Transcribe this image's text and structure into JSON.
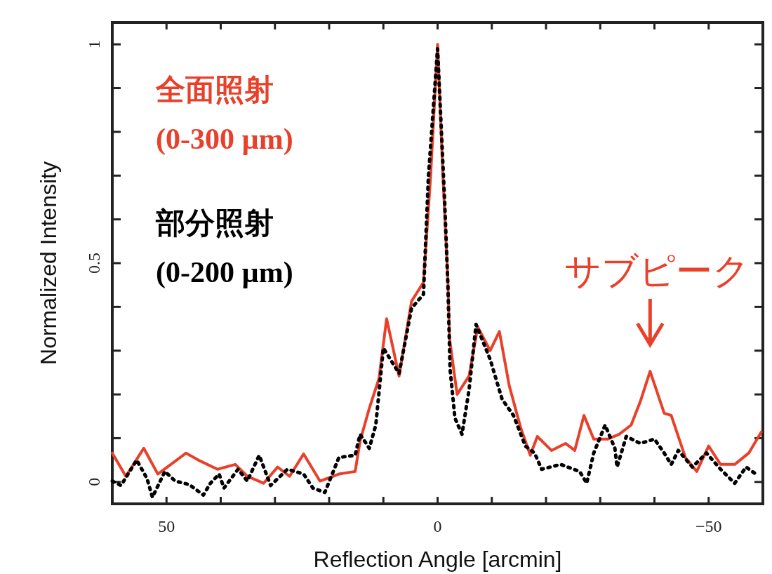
{
  "chart_data": {
    "type": "line",
    "xlabel": "Reflection Angle [arcmin]",
    "ylabel": "Normalized Intensity",
    "xlim": [
      60,
      -60
    ],
    "ylim": [
      -0.05,
      1.05
    ],
    "xticks": [
      {
        "value": 50,
        "label": "50"
      },
      {
        "value": 40,
        "label": null
      },
      {
        "value": 30,
        "label": null
      },
      {
        "value": 20,
        "label": null
      },
      {
        "value": 10,
        "label": null
      },
      {
        "value": 0,
        "label": "0"
      },
      {
        "value": -10,
        "label": null
      },
      {
        "value": -20,
        "label": null
      },
      {
        "value": -30,
        "label": null
      },
      {
        "value": -40,
        "label": null
      },
      {
        "value": -50,
        "label": "−50"
      }
    ],
    "yticks": [
      0,
      {
        "value": 0.1,
        "label": null
      },
      {
        "value": 0.2,
        "label": null
      },
      {
        "value": 0.3,
        "label": null
      },
      {
        "value": 0.4,
        "label": null
      },
      0.5,
      {
        "value": 0.6,
        "label": null
      },
      {
        "value": 0.7,
        "label": null
      },
      {
        "value": 0.8,
        "label": null
      },
      {
        "value": 0.9,
        "label": null
      },
      1
    ],
    "legend": "top left",
    "grid": false,
    "series": [
      {
        "name": "全面照射 (0-300 µm)",
        "color": "#e8402a",
        "line_style": "solid",
        "x": [
          60,
          57.5,
          54.2,
          51.6,
          46.4,
          43.8,
          40.6,
          37.3,
          35.1,
          32.1,
          29.5,
          27.3,
          24.7,
          21.7,
          18.2,
          15.2,
          14.3,
          12.6,
          10.8,
          9.4,
          7.1,
          4.8,
          2.6,
          1.3,
          0,
          -1.0,
          -1.9,
          -2.2,
          -3.6,
          -5.8,
          -7.4,
          -9.7,
          -11.4,
          -13.2,
          -15.3,
          -17.1,
          -18.4,
          -21.0,
          -23.6,
          -25.3,
          -27.0,
          -28.8,
          -31.4,
          -33.5,
          -35.7,
          -37.4,
          -39.2,
          -41.8,
          -43.1,
          -45.7,
          -47.8,
          -50.0,
          -52.2,
          -54.8,
          -57.4,
          -59.7
        ],
        "values": [
          0.066,
          0.013,
          0.077,
          0.018,
          0.066,
          0.048,
          0.029,
          0.04,
          0.013,
          -0.003,
          0.034,
          0.013,
          0.064,
          0.002,
          0.018,
          0.024,
          0.093,
          0.168,
          0.237,
          0.373,
          0.242,
          0.413,
          0.456,
          0.696,
          1.0,
          0.696,
          0.461,
          0.328,
          0.2,
          0.242,
          0.354,
          0.3,
          0.344,
          0.221,
          0.125,
          0.061,
          0.104,
          0.072,
          0.088,
          0.072,
          0.152,
          0.098,
          0.098,
          0.109,
          0.13,
          0.184,
          0.253,
          0.157,
          0.152,
          0.056,
          0.024,
          0.082,
          0.04,
          0.04,
          0.066,
          0.114
        ]
      },
      {
        "name": "部分照射 (0-200 µm)",
        "color": "#000000",
        "line_style": "dotted",
        "x": [
          60,
          58.4,
          55.5,
          53.6,
          52.6,
          50.3,
          48.4,
          45.8,
          43.2,
          41.9,
          40.3,
          39.4,
          36.8,
          35.1,
          32.9,
          30.8,
          27.7,
          24.7,
          23.0,
          20.8,
          18.2,
          15.2,
          14.3,
          12.6,
          11.4,
          10.0,
          7.1,
          4.8,
          2.6,
          1.7,
          0,
          -1.3,
          -1.9,
          -2.3,
          -3.2,
          -4.5,
          -5.8,
          -7.1,
          -9.7,
          -11.9,
          -14.0,
          -16.2,
          -17.9,
          -19.2,
          -22.7,
          -26.2,
          -27.5,
          -28.8,
          -30.9,
          -32.7,
          -33.1,
          -34.8,
          -37.4,
          -40.0,
          -41.8,
          -43.1,
          -44.4,
          -47.0,
          -49.6,
          -52.2,
          -54.8,
          -56.9,
          -58.7
        ],
        "values": [
          0.002,
          -0.008,
          0.05,
          0.008,
          -0.035,
          0.024,
          0.002,
          -0.006,
          -0.03,
          -0.003,
          0.018,
          -0.014,
          0.029,
          0.002,
          0.061,
          -0.008,
          0.029,
          0.018,
          -0.014,
          -0.024,
          0.056,
          0.061,
          0.109,
          0.077,
          0.13,
          0.306,
          0.248,
          0.397,
          0.429,
          0.696,
          0.99,
          0.642,
          0.45,
          0.258,
          0.146,
          0.109,
          0.21,
          0.36,
          0.28,
          0.189,
          0.152,
          0.082,
          0.066,
          0.029,
          0.04,
          0.024,
          -0.003,
          0.066,
          0.13,
          0.077,
          0.034,
          0.104,
          0.088,
          0.098,
          0.066,
          0.04,
          0.072,
          0.034,
          0.066,
          0.029,
          -0.003,
          0.034,
          0.018
        ]
      }
    ],
    "annotations": [
      {
        "text": "サブピーク",
        "x": -39.2,
        "y": 0.253
      }
    ]
  }
}
